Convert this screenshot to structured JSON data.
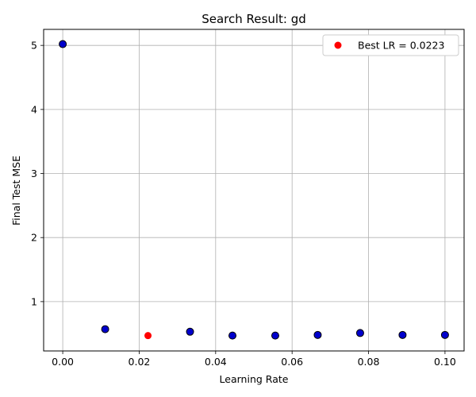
{
  "chart_data": {
    "type": "scatter",
    "title": "Search Result: gd",
    "xlabel": "Learning Rate",
    "ylabel": "Final Test MSE",
    "xlim": [
      -0.005,
      0.105
    ],
    "ylim": [
      0.23,
      5.25
    ],
    "xticks": [
      0.0,
      0.02,
      0.04,
      0.06,
      0.08,
      0.1
    ],
    "xtick_labels": [
      "0.00",
      "0.02",
      "0.04",
      "0.06",
      "0.08",
      "0.10"
    ],
    "yticks": [
      1,
      2,
      3,
      4,
      5
    ],
    "ytick_labels": [
      "1",
      "2",
      "3",
      "4",
      "5"
    ],
    "grid": true,
    "legend_position": "top-right",
    "series": [
      {
        "color": "#0000cc",
        "edgecolor": "#000000",
        "points": [
          {
            "x": 0.0,
            "y": 5.02
          },
          {
            "x": 0.0111,
            "y": 0.57
          },
          {
            "x": 0.0333,
            "y": 0.53
          },
          {
            "x": 0.0444,
            "y": 0.47
          },
          {
            "x": 0.0556,
            "y": 0.47
          },
          {
            "x": 0.0667,
            "y": 0.48
          },
          {
            "x": 0.0778,
            "y": 0.51
          },
          {
            "x": 0.0889,
            "y": 0.48
          },
          {
            "x": 0.1,
            "y": 0.48
          }
        ]
      },
      {
        "name": "Best LR = 0.0223",
        "color": "#ff0000",
        "points": [
          {
            "x": 0.0223,
            "y": 0.47
          }
        ]
      }
    ]
  }
}
